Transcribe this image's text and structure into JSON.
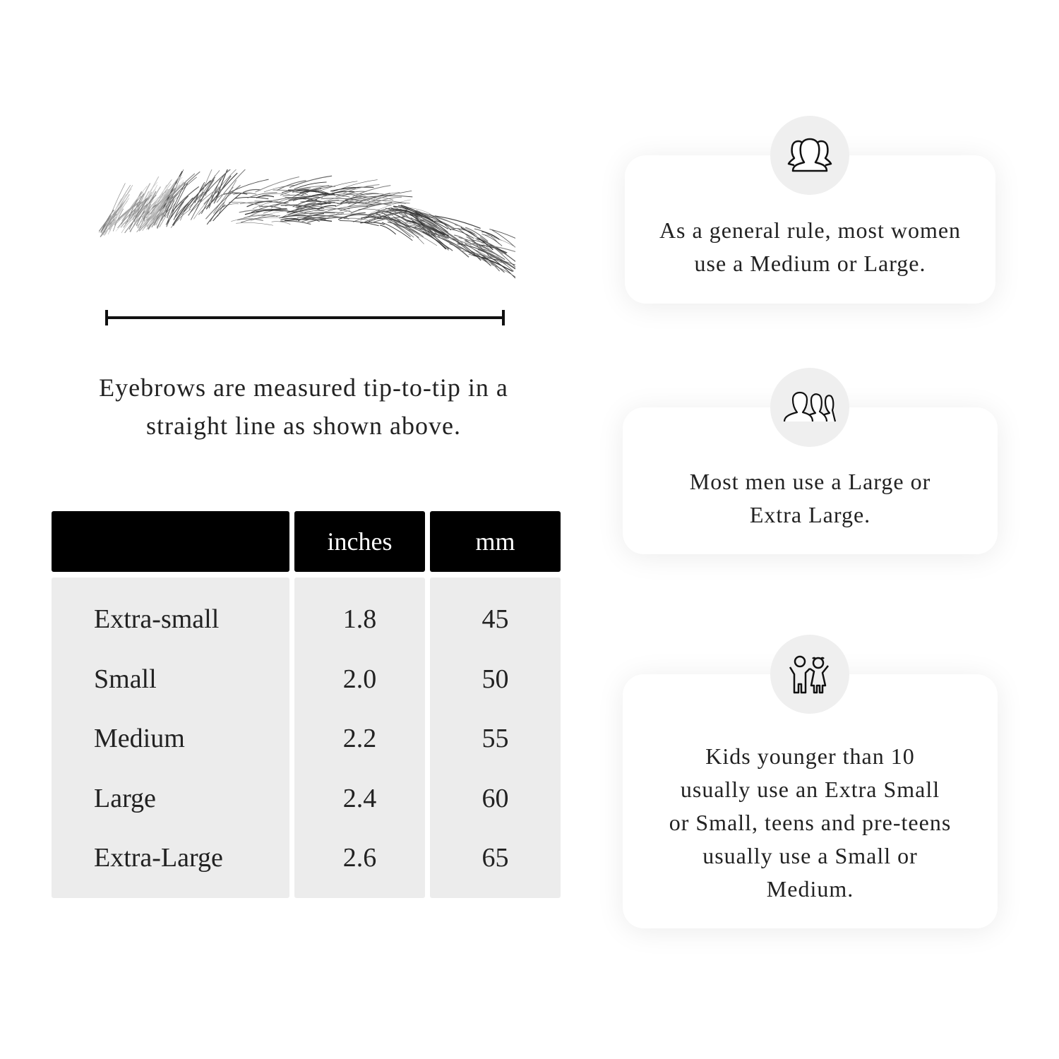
{
  "measure_caption": "Eyebrows are measured tip-to-tip in a straight line as shown above.",
  "table": {
    "headers": [
      "",
      "inches",
      "mm"
    ],
    "rows": [
      {
        "size": "Extra-small",
        "inches": "1.8",
        "mm": "45"
      },
      {
        "size": "Small",
        "inches": "2.0",
        "mm": "50"
      },
      {
        "size": "Medium",
        "inches": "2.2",
        "mm": "55"
      },
      {
        "size": "Large",
        "inches": "2.4",
        "mm": "60"
      },
      {
        "size": "Extra-Large",
        "inches": "2.6",
        "mm": "65"
      }
    ]
  },
  "cards": [
    {
      "icon": "women-group-icon",
      "text": "As a general rule, most women use a Medium or Large."
    },
    {
      "icon": "men-group-icon",
      "text": "Most men use a Large or Extra Large."
    },
    {
      "icon": "kids-icon",
      "text": "Kids younger than 10 usually use an Extra Small or Small, teens and pre-teens usually use a Small or Medium."
    }
  ],
  "colors": {
    "header_bg": "#000000",
    "table_bg": "#ececec",
    "icon_circle": "#efefef"
  }
}
